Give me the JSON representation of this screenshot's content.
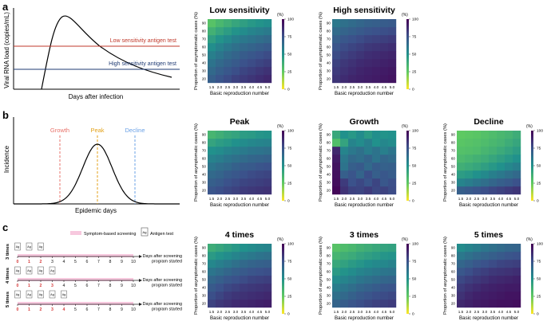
{
  "panel_labels": {
    "a": "a",
    "b": "b",
    "c": "c"
  },
  "panel_a": {
    "ylabel": "Viral RNA load (copies/mL)",
    "xlabel": "Days after infection",
    "low_label": "Low sensitivity antigen test",
    "high_label": "High sensitivity antigen test",
    "colors": {
      "curve": "#000000",
      "low": "#c0392b",
      "high": "#1f3b73"
    }
  },
  "panel_b": {
    "ylabel": "Incidence",
    "xlabel": "Epidemic days",
    "growth_label": "Growth",
    "peak_label": "Peak",
    "decline_label": "Decline",
    "colors": {
      "growth": "#e8736b",
      "peak": "#e3a21a",
      "decline": "#6aa1e6"
    }
  },
  "panel_c": {
    "legend_screening": "Symptom-based screening",
    "legend_antigen": "Antigen test",
    "antigen_icon_text": "Ag",
    "xlabel_line1": "Days after screening",
    "xlabel_line2": "program started",
    "tick_labels": [
      "0",
      "1",
      "2",
      "3",
      "4",
      "5",
      "6",
      "7",
      "8",
      "9",
      "10"
    ],
    "rows": [
      {
        "label": "3 times",
        "test_days": [
          "0",
          "1",
          "2"
        ]
      },
      {
        "label": "4 times",
        "test_days": [
          "0",
          "1",
          "2",
          "3"
        ]
      },
      {
        "label": "5 times",
        "test_days": [
          "0",
          "1",
          "2",
          "3",
          "4"
        ]
      }
    ],
    "colors": {
      "screening": "#f7c8de",
      "test_day": "#d63a3a",
      "axis": "#222222"
    }
  },
  "heatmap_common": {
    "xlabel": "Basic reproduction number",
    "ylabel": "Proportion of asymptomatic cases (%)",
    "colorbar_unit": "(%)",
    "x_ticks": [
      "1.5",
      "2.0",
      "2.5",
      "3.0",
      "3.5",
      "4.0",
      "4.5",
      "5.0"
    ],
    "y_ticks": [
      "20",
      "30",
      "40",
      "50",
      "60",
      "70",
      "80",
      "90"
    ],
    "colorbar_ticks": [
      "0",
      "25",
      "50",
      "75",
      "100"
    ],
    "colormap": [
      "#fde725",
      "#5ec962",
      "#21918c",
      "#3b528b",
      "#440154"
    ]
  },
  "chart_data": [
    {
      "type": "heatmap",
      "title": "Low sensitivity",
      "x": [
        1.5,
        2.0,
        2.5,
        3.0,
        3.5,
        4.0,
        4.5,
        5.0
      ],
      "y": [
        20,
        30,
        40,
        50,
        60,
        70,
        80,
        90
      ],
      "zlim": [
        0,
        100
      ],
      "values": [
        [
          70,
          74,
          77,
          80,
          82,
          84,
          86,
          88
        ],
        [
          66,
          70,
          73,
          76,
          79,
          81,
          83,
          85
        ],
        [
          62,
          66,
          69,
          72,
          75,
          77,
          79,
          81
        ],
        [
          57,
          61,
          65,
          68,
          71,
          73,
          75,
          77
        ],
        [
          51,
          56,
          60,
          63,
          66,
          68,
          70,
          72
        ],
        [
          44,
          49,
          53,
          57,
          60,
          62,
          64,
          66
        ],
        [
          36,
          41,
          45,
          49,
          52,
          55,
          57,
          59
        ],
        [
          28,
          33,
          37,
          41,
          44,
          47,
          49,
          51
        ]
      ]
    },
    {
      "type": "heatmap",
      "title": "High sensitivity",
      "x": [
        1.5,
        2.0,
        2.5,
        3.0,
        3.5,
        4.0,
        4.5,
        5.0
      ],
      "y": [
        20,
        30,
        40,
        50,
        60,
        70,
        80,
        90
      ],
      "zlim": [
        0,
        100
      ],
      "values": [
        [
          84,
          87,
          89,
          90,
          91,
          92,
          93,
          94
        ],
        [
          82,
          85,
          87,
          89,
          90,
          91,
          92,
          93
        ],
        [
          80,
          83,
          85,
          87,
          88,
          89,
          90,
          91
        ],
        [
          77,
          80,
          82,
          84,
          86,
          87,
          88,
          89
        ],
        [
          74,
          77,
          79,
          81,
          83,
          84,
          85,
          86
        ],
        [
          70,
          73,
          75,
          77,
          79,
          80,
          81,
          82
        ],
        [
          65,
          68,
          70,
          72,
          74,
          75,
          76,
          77
        ],
        [
          60,
          63,
          65,
          67,
          69,
          70,
          71,
          72
        ]
      ]
    },
    {
      "type": "heatmap",
      "title": "Peak",
      "x": [
        1.5,
        2.0,
        2.5,
        3.0,
        3.5,
        4.0,
        4.5,
        5.0
      ],
      "y": [
        20,
        30,
        40,
        50,
        60,
        70,
        80,
        90
      ],
      "zlim": [
        0,
        100
      ],
      "values": [
        [
          74,
          76,
          78,
          80,
          82,
          83,
          84,
          85
        ],
        [
          70,
          72,
          75,
          77,
          79,
          80,
          81,
          82
        ],
        [
          66,
          68,
          71,
          73,
          75,
          77,
          78,
          79
        ],
        [
          61,
          64,
          66,
          69,
          71,
          72,
          74,
          75
        ],
        [
          56,
          58,
          61,
          63,
          65,
          67,
          68,
          69
        ],
        [
          50,
          52,
          55,
          57,
          59,
          61,
          62,
          63
        ],
        [
          42,
          45,
          47,
          50,
          52,
          54,
          55,
          56
        ],
        [
          34,
          37,
          40,
          42,
          45,
          46,
          48,
          49
        ]
      ]
    },
    {
      "type": "heatmap",
      "title": "Growth",
      "x": [
        1.5,
        2.0,
        2.5,
        3.0,
        3.5,
        4.0,
        4.5,
        5.0
      ],
      "y": [
        20,
        30,
        40,
        50,
        60,
        70,
        80,
        90
      ],
      "zlim": [
        0,
        100
      ],
      "values": [
        [
          98,
          85,
          80,
          79,
          82,
          78,
          80,
          77
        ],
        [
          96,
          82,
          75,
          78,
          74,
          79,
          73,
          76
        ],
        [
          95,
          70,
          74,
          68,
          76,
          70,
          73,
          71
        ],
        [
          94,
          62,
          70,
          72,
          66,
          71,
          69,
          70
        ],
        [
          92,
          60,
          66,
          64,
          68,
          62,
          67,
          65
        ],
        [
          88,
          55,
          60,
          63,
          58,
          62,
          57,
          61
        ],
        [
          30,
          42,
          55,
          52,
          57,
          50,
          54,
          52
        ],
        [
          40,
          50,
          47,
          52,
          46,
          51,
          49,
          50
        ]
      ]
    },
    {
      "type": "heatmap",
      "title": "Decline",
      "x": [
        1.5,
        2.0,
        2.5,
        3.0,
        3.5,
        4.0,
        4.5,
        5.0
      ],
      "y": [
        20,
        30,
        40,
        50,
        60,
        70,
        80,
        90
      ],
      "zlim": [
        0,
        100
      ],
      "values": [
        [
          70,
          72,
          74,
          76,
          78,
          80,
          82,
          84
        ],
        [
          55,
          58,
          61,
          64,
          67,
          70,
          72,
          75
        ],
        [
          45,
          47,
          50,
          53,
          57,
          60,
          63,
          66
        ],
        [
          37,
          39,
          41,
          44,
          47,
          50,
          54,
          57
        ],
        [
          32,
          34,
          36,
          38,
          41,
          44,
          47,
          50
        ],
        [
          29,
          30,
          31,
          34,
          36,
          39,
          42,
          45
        ],
        [
          27,
          28,
          29,
          31,
          33,
          35,
          38,
          41
        ],
        [
          25,
          26,
          27,
          29,
          31,
          33,
          35,
          38
        ]
      ]
    },
    {
      "type": "heatmap",
      "title": "4 times",
      "x": [
        1.5,
        2.0,
        2.5,
        3.0,
        3.5,
        4.0,
        4.5,
        5.0
      ],
      "y": [
        20,
        30,
        40,
        50,
        60,
        70,
        80,
        90
      ],
      "zlim": [
        0,
        100
      ],
      "values": [
        [
          80,
          83,
          85,
          87,
          88,
          89,
          90,
          91
        ],
        [
          76,
          79,
          82,
          84,
          85,
          86,
          87,
          88
        ],
        [
          72,
          75,
          78,
          80,
          82,
          83,
          84,
          85
        ],
        [
          67,
          70,
          73,
          75,
          77,
          79,
          80,
          81
        ],
        [
          61,
          64,
          67,
          70,
          72,
          74,
          75,
          76
        ],
        [
          54,
          57,
          60,
          63,
          66,
          68,
          69,
          70
        ],
        [
          46,
          49,
          52,
          55,
          58,
          60,
          62,
          63
        ],
        [
          38,
          41,
          44,
          47,
          50,
          52,
          54,
          55
        ]
      ]
    },
    {
      "type": "heatmap",
      "title": "3 times",
      "x": [
        1.5,
        2.0,
        2.5,
        3.0,
        3.5,
        4.0,
        4.5,
        5.0
      ],
      "y": [
        20,
        30,
        40,
        50,
        60,
        70,
        80,
        90
      ],
      "zlim": [
        0,
        100
      ],
      "values": [
        [
          68,
          71,
          74,
          76,
          78,
          80,
          81,
          82
        ],
        [
          63,
          66,
          69,
          72,
          74,
          76,
          77,
          78
        ],
        [
          58,
          61,
          64,
          67,
          69,
          71,
          73,
          74
        ],
        [
          52,
          55,
          58,
          61,
          63,
          65,
          67,
          68
        ],
        [
          46,
          49,
          52,
          55,
          57,
          59,
          61,
          62
        ],
        [
          40,
          43,
          46,
          48,
          51,
          53,
          54,
          56
        ],
        [
          34,
          37,
          39,
          42,
          44,
          46,
          48,
          49
        ],
        [
          28,
          31,
          33,
          36,
          38,
          40,
          42,
          43
        ]
      ]
    },
    {
      "type": "heatmap",
      "title": "5 times",
      "x": [
        1.5,
        2.0,
        2.5,
        3.0,
        3.5,
        4.0,
        4.5,
        5.0
      ],
      "y": [
        20,
        30,
        40,
        50,
        60,
        70,
        80,
        90
      ],
      "zlim": [
        0,
        100
      ],
      "values": [
        [
          88,
          90,
          92,
          93,
          94,
          95,
          95,
          96
        ],
        [
          85,
          88,
          90,
          91,
          92,
          93,
          94,
          94
        ],
        [
          82,
          85,
          87,
          89,
          90,
          91,
          92,
          92
        ],
        [
          78,
          81,
          83,
          85,
          87,
          88,
          89,
          90
        ],
        [
          73,
          76,
          79,
          81,
          83,
          84,
          85,
          86
        ],
        [
          67,
          70,
          73,
          75,
          77,
          79,
          80,
          81
        ],
        [
          60,
          63,
          66,
          68,
          70,
          72,
          74,
          75
        ],
        [
          52,
          55,
          58,
          61,
          63,
          65,
          67,
          68
        ]
      ]
    }
  ]
}
